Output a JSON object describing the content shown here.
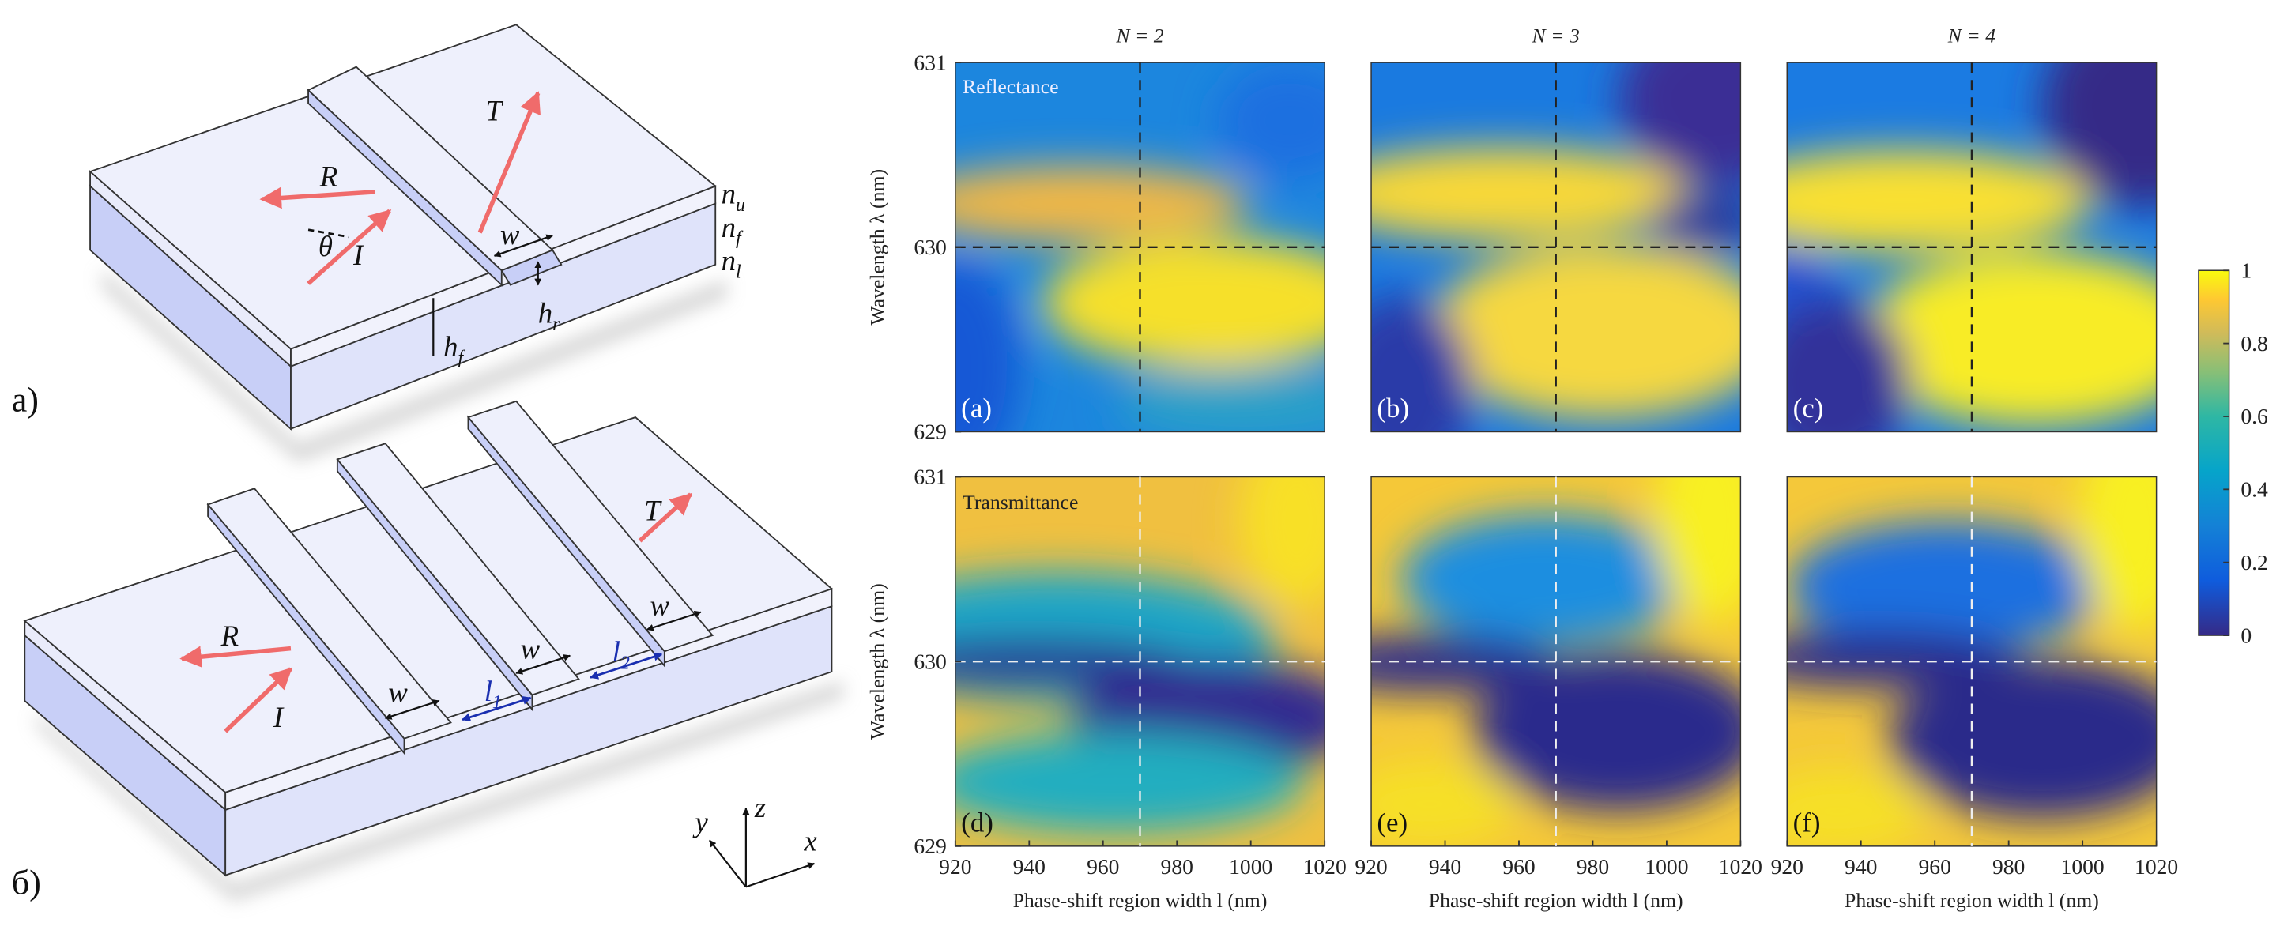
{
  "diagram_a": {
    "label": "а)",
    "R": "R",
    "T": "T",
    "I": "I",
    "theta": "θ",
    "w": "w",
    "h_r": {
      "base": "h",
      "sub": "r"
    },
    "h_f": {
      "base": "h",
      "sub": "f"
    },
    "n_u": {
      "base": "n",
      "sub": "u"
    },
    "n_f": {
      "base": "n",
      "sub": "f"
    },
    "n_l": {
      "base": "n",
      "sub": "l"
    }
  },
  "diagram_b": {
    "label": "б)",
    "R": "R",
    "T": "T",
    "I": "I",
    "w_labels": [
      "w",
      "w",
      "w"
    ],
    "l_1": {
      "base": "l",
      "sub": "1"
    },
    "l_2": {
      "base": "l",
      "sub": "2"
    }
  },
  "axes_icon": {
    "x": "x",
    "y": "y",
    "z": "z"
  },
  "heatmaps": {
    "columns": [
      "N = 2",
      "N = 3",
      "N = 4"
    ],
    "rows": [
      {
        "name": "Reflectance",
        "panels": [
          "(a)",
          "(b)",
          "(c)"
        ]
      },
      {
        "name": "Transmittance",
        "panels": [
          "(d)",
          "(e)",
          "(f)"
        ]
      }
    ],
    "y_label": "Wavelength λ (nm)",
    "x_label": "Phase-shift region width l (nm)",
    "xlim": [
      920,
      1020
    ],
    "ylim": [
      629,
      631
    ],
    "xticks": [
      920,
      940,
      960,
      980,
      1000,
      1020
    ],
    "yticks": [
      629,
      630,
      631
    ],
    "marker_l": 970,
    "marker_lambda": 630,
    "clim": [
      0,
      1
    ],
    "colorbar_ticks": [
      0,
      0.2,
      0.4,
      0.6,
      0.8,
      1
    ]
  }
}
